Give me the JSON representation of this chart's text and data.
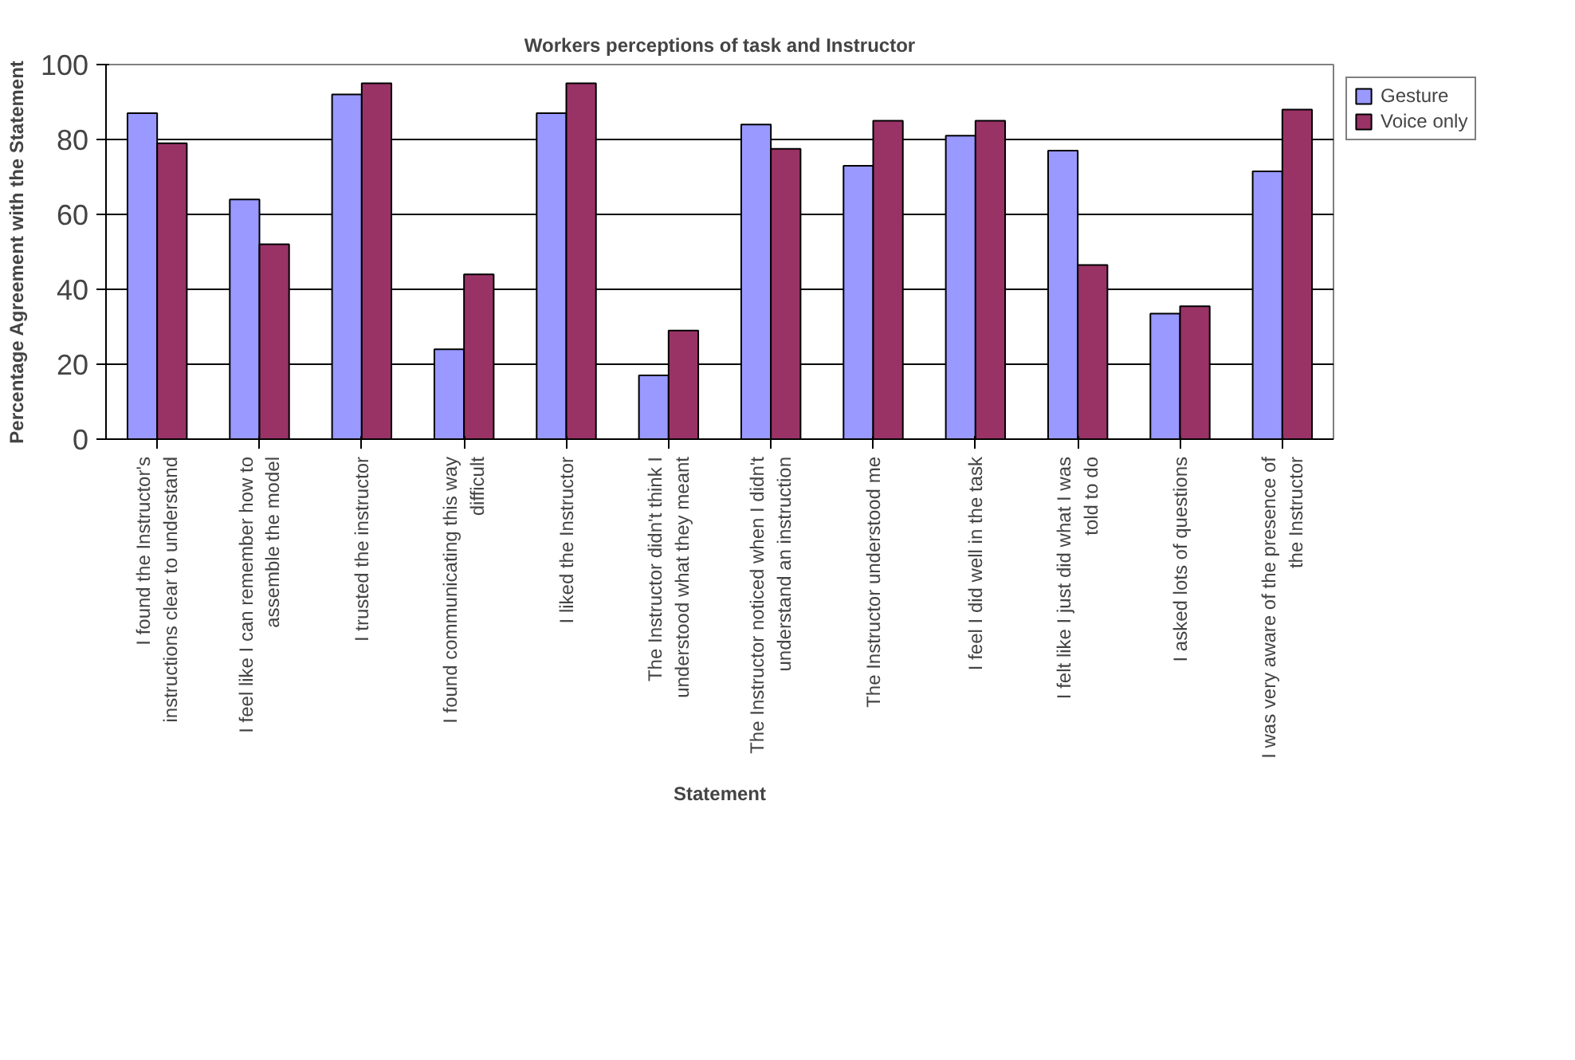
{
  "chart_data": {
    "type": "bar",
    "title": "Workers perceptions of task and Instructor",
    "xlabel": "Statement",
    "ylabel": "Percentage Agreement with the Statement",
    "categories": [
      "I found the Instructor's instructions clear to understand",
      "I feel like I can remember how to assemble the model",
      "I trusted the instructor",
      "I found communicating this way difficult",
      "I liked the Instructor",
      "The Instructor didn't think I understood what they meant",
      "The Instructor noticed when I didn't understand an instruction",
      "The Instructor understood me",
      "I feel I did well in the task",
      "I felt like I just did what I was told to do",
      "I asked lots of questions",
      "I was very aware of the presence of the Instructor"
    ],
    "series": [
      {
        "name": "Gesture",
        "color": "#9999ff",
        "values": [
          87,
          64,
          92,
          24,
          87,
          17,
          84,
          73,
          81,
          77,
          33.5,
          71.5
        ]
      },
      {
        "name": "Voice only",
        "color": "#993366",
        "values": [
          79,
          52,
          95,
          44,
          95,
          29,
          77.5,
          85,
          85,
          46.5,
          35.5,
          88
        ]
      }
    ],
    "ylim": [
      0,
      100
    ],
    "yticks": [
      0,
      20,
      40,
      60,
      80,
      100
    ],
    "grid": "y",
    "legend": "right"
  }
}
